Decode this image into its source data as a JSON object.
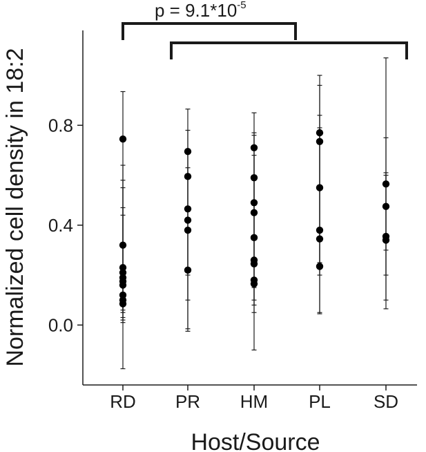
{
  "chart_data": {
    "type": "scatter",
    "title": "",
    "xlabel": "Host/Source",
    "ylabel": "Normalized cell density in 18:2",
    "categories": [
      "RD",
      "PR",
      "HM",
      "PL",
      "SD"
    ],
    "yticks": [
      {
        "value": 0.0,
        "label": "0.0"
      },
      {
        "value": 0.4,
        "label": "0.4"
      },
      {
        "value": 0.8,
        "label": "0.8"
      }
    ],
    "ylim": [
      -0.24,
      1.18
    ],
    "grid": false,
    "legend": "none",
    "points": {
      "RD": [
        0.745,
        0.32,
        0.23,
        0.21,
        0.19,
        0.175,
        0.16,
        0.12,
        0.1,
        0.085
      ],
      "PR": [
        0.695,
        0.595,
        0.465,
        0.42,
        0.38,
        0.22
      ],
      "HM": [
        0.71,
        0.59,
        0.49,
        0.45,
        0.35,
        0.26,
        0.245,
        0.18,
        0.165
      ],
      "PL": [
        0.77,
        0.735,
        0.55,
        0.38,
        0.345,
        0.235
      ],
      "SD": [
        0.565,
        0.475,
        0.355,
        0.34
      ]
    },
    "error_bars": {
      "RD": [
        {
          "low": -0.175,
          "high": 0.935
        },
        {
          "low": 0.02,
          "high": 0.64
        },
        {
          "low": 0.01,
          "high": 0.58
        },
        {
          "low": 0.03,
          "high": 0.55
        },
        {
          "low": 0.05,
          "high": 0.47
        },
        {
          "low": 0.06,
          "high": 0.44
        }
      ],
      "PR": [
        {
          "low": -0.025,
          "high": 0.865
        },
        {
          "low": -0.015,
          "high": 0.78
        },
        {
          "low": 0.1,
          "high": 0.7
        },
        {
          "low": 0.2,
          "high": 0.63
        }
      ],
      "HM": [
        {
          "low": -0.1,
          "high": 0.85
        },
        {
          "low": 0.08,
          "high": 0.77
        },
        {
          "low": 0.05,
          "high": 0.76
        },
        {
          "low": 0.1,
          "high": 0.68
        },
        {
          "low": 0.15,
          "high": 0.6
        }
      ],
      "PL": [
        {
          "low": 0.045,
          "high": 1.0
        },
        {
          "low": 0.05,
          "high": 0.96
        },
        {
          "low": 0.2,
          "high": 0.84
        },
        {
          "low": 0.25,
          "high": 0.79
        }
      ],
      "SD": [
        {
          "low": 0.065,
          "high": 1.07
        },
        {
          "low": 0.1,
          "high": 0.75
        },
        {
          "low": 0.2,
          "high": 0.61
        },
        {
          "low": 0.3,
          "high": 0.6
        }
      ]
    },
    "annotation": {
      "text_main": "p = 9.1*10",
      "text_exponent": "-5",
      "left_group": [
        "RD"
      ],
      "right_group": [
        "PR",
        "HM",
        "PL",
        "SD"
      ]
    },
    "colors": {
      "points": "#000000",
      "axes": "#1a1a1a"
    }
  }
}
